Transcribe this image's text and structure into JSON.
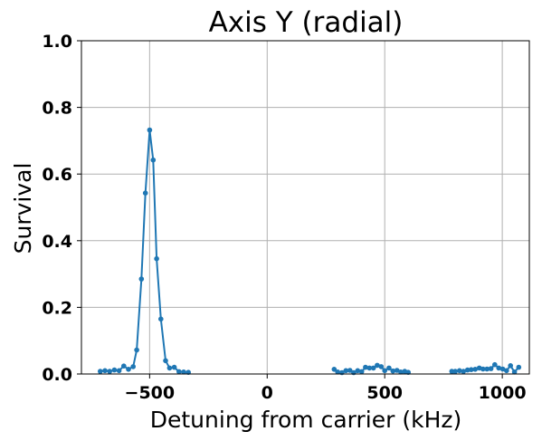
{
  "chart_data": {
    "type": "line",
    "title": "Axis Y (radial)",
    "xlabel": "Detuning from carrier (kHz)",
    "ylabel": "Survival",
    "xlim": [
      -790,
      1115
    ],
    "ylim": [
      0.0,
      1.0
    ],
    "xticks": [
      -500,
      0,
      500,
      1000
    ],
    "xtick_labels": [
      "−500",
      "0",
      "500",
      "1000"
    ],
    "yticks": [
      0.0,
      0.2,
      0.4,
      0.6,
      0.8,
      1.0
    ],
    "ytick_labels": [
      "0.0",
      "0.2",
      "0.4",
      "0.6",
      "0.8",
      "1.0"
    ],
    "grid": true,
    "series": [
      {
        "color": "#1f77b4",
        "segments": [
          [
            {
              "x": -710,
              "y": 0.008
            },
            {
              "x": -690,
              "y": 0.01
            },
            {
              "x": -670,
              "y": 0.008
            },
            {
              "x": -650,
              "y": 0.012
            },
            {
              "x": -630,
              "y": 0.01
            },
            {
              "x": -610,
              "y": 0.024
            },
            {
              "x": -590,
              "y": 0.014
            },
            {
              "x": -570,
              "y": 0.022
            },
            {
              "x": -555,
              "y": 0.072
            },
            {
              "x": -535,
              "y": 0.285
            },
            {
              "x": -518,
              "y": 0.543
            },
            {
              "x": -500,
              "y": 0.732
            },
            {
              "x": -485,
              "y": 0.642
            },
            {
              "x": -470,
              "y": 0.346
            },
            {
              "x": -452,
              "y": 0.165
            },
            {
              "x": -432,
              "y": 0.04
            },
            {
              "x": -415,
              "y": 0.018
            },
            {
              "x": -395,
              "y": 0.02
            },
            {
              "x": -375,
              "y": 0.007
            },
            {
              "x": -355,
              "y": 0.006
            },
            {
              "x": -335,
              "y": 0.005
            }
          ],
          [
            {
              "x": 285,
              "y": 0.014
            },
            {
              "x": 300,
              "y": 0.006
            },
            {
              "x": 318,
              "y": 0.004
            },
            {
              "x": 335,
              "y": 0.01
            },
            {
              "x": 352,
              "y": 0.011
            },
            {
              "x": 368,
              "y": 0.004
            },
            {
              "x": 385,
              "y": 0.01
            },
            {
              "x": 402,
              "y": 0.007
            },
            {
              "x": 418,
              "y": 0.02
            },
            {
              "x": 435,
              "y": 0.018
            },
            {
              "x": 452,
              "y": 0.018
            },
            {
              "x": 468,
              "y": 0.026
            },
            {
              "x": 485,
              "y": 0.022
            },
            {
              "x": 500,
              "y": 0.01
            },
            {
              "x": 518,
              "y": 0.018
            },
            {
              "x": 535,
              "y": 0.009
            },
            {
              "x": 552,
              "y": 0.011
            },
            {
              "x": 568,
              "y": 0.006
            },
            {
              "x": 585,
              "y": 0.008
            },
            {
              "x": 600,
              "y": 0.005
            }
          ],
          [
            {
              "x": 785,
              "y": 0.008
            },
            {
              "x": 800,
              "y": 0.008
            },
            {
              "x": 818,
              "y": 0.01
            },
            {
              "x": 835,
              "y": 0.008
            },
            {
              "x": 852,
              "y": 0.012
            },
            {
              "x": 868,
              "y": 0.013
            },
            {
              "x": 885,
              "y": 0.014
            },
            {
              "x": 902,
              "y": 0.018
            },
            {
              "x": 918,
              "y": 0.015
            },
            {
              "x": 935,
              "y": 0.015
            },
            {
              "x": 952,
              "y": 0.016
            },
            {
              "x": 968,
              "y": 0.028
            },
            {
              "x": 985,
              "y": 0.018
            },
            {
              "x": 1002,
              "y": 0.015
            },
            {
              "x": 1018,
              "y": 0.01
            },
            {
              "x": 1035,
              "y": 0.025
            },
            {
              "x": 1052,
              "y": 0.006
            },
            {
              "x": 1070,
              "y": 0.02
            }
          ]
        ]
      }
    ]
  }
}
